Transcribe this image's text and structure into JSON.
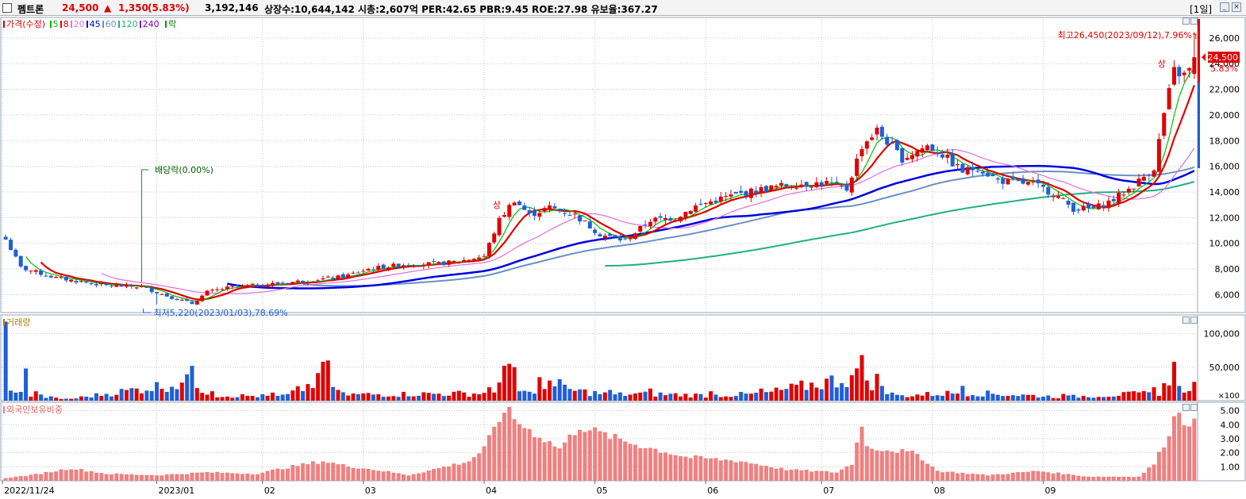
{
  "header": {
    "name": "펨트론",
    "price": "24,500",
    "change_arrow": "▲",
    "change": "1,350",
    "change_pct": "(5.83%)",
    "volume": "3,192,146",
    "info": "상장수:10,644,142 시총:2,607억 PER:42.65 PBR:9.45 ROE:27.98 유보율:367.27",
    "period": "[1일]"
  },
  "legend": {
    "price_label": "가격(수정)",
    "ma": [
      {
        "label": "5",
        "color": "#00c000"
      },
      {
        "label": "8",
        "color": "#e00000"
      },
      {
        "label": "20",
        "color": "#e070e0"
      },
      {
        "label": "45",
        "color": "#0000e0"
      },
      {
        "label": "60",
        "color": "#6a90c8"
      },
      {
        "label": "120",
        "color": "#20b080"
      },
      {
        "label": "240",
        "color": "#8000c0"
      }
    ],
    "rak": "락",
    "volume_label": "거래량",
    "foreign_label": "외국인보유비중"
  },
  "colors": {
    "up": "#e00000",
    "down": "#1f5fd6",
    "foreign": "#f08080",
    "grid": "#c8c8c8"
  },
  "annotations": {
    "high": "최고26,450(2023/09/12),7.96%",
    "low": "최저5,220(2023/01/03),78.69%",
    "dividend": "배당락(0.00%)",
    "limit_up": "상",
    "last_price": "24,500",
    "last_pct": "5.83%"
  },
  "chart_data": {
    "type": "candlestick",
    "x_range": [
      "2022/11/24",
      "2023/09/13"
    ],
    "x_ticks": [
      "2022/11/24",
      "2023/01",
      "02",
      "03",
      "04",
      "05",
      "06",
      "07",
      "08",
      "09"
    ],
    "price_axis": {
      "ticks": [
        "6,000",
        "8,000",
        "10,000",
        "12,000",
        "14,000",
        "16,000",
        "18,000",
        "20,000",
        "22,000",
        "24,000",
        "26,000"
      ],
      "ylim": [
        4600,
        27600
      ]
    },
    "volume_axis": {
      "ticks": [
        "50,000",
        "100,000"
      ],
      "unit": "×100",
      "ylim": [
        0,
        128000
      ]
    },
    "foreign_axis": {
      "ticks": [
        "1.00",
        "2.00",
        "3.00",
        "4.00",
        "5.00"
      ],
      "ylim": [
        0,
        5.6
      ]
    },
    "price_keypoints": [
      [
        0,
        10300
      ],
      [
        3,
        8100
      ],
      [
        10,
        7300
      ],
      [
        20,
        6700
      ],
      [
        27,
        6600
      ],
      [
        32,
        5900
      ],
      [
        37,
        5300
      ],
      [
        40,
        6200
      ],
      [
        45,
        6600
      ],
      [
        52,
        6800
      ],
      [
        60,
        7100
      ],
      [
        67,
        7400
      ],
      [
        72,
        8000
      ],
      [
        80,
        8400
      ],
      [
        86,
        8400
      ],
      [
        90,
        8600
      ],
      [
        95,
        9000
      ],
      [
        98,
        11800
      ],
      [
        101,
        13400
      ],
      [
        104,
        12200
      ],
      [
        108,
        12800
      ],
      [
        113,
        12200
      ],
      [
        118,
        10700
      ],
      [
        123,
        10200
      ],
      [
        128,
        11800
      ],
      [
        133,
        12000
      ],
      [
        137,
        12900
      ],
      [
        143,
        13600
      ],
      [
        150,
        14200
      ],
      [
        156,
        14600
      ],
      [
        163,
        14700
      ],
      [
        167,
        14200
      ],
      [
        170,
        17600
      ],
      [
        173,
        18800
      ],
      [
        178,
        16600
      ],
      [
        183,
        17600
      ],
      [
        186,
        16900
      ],
      [
        190,
        15600
      ],
      [
        193,
        15900
      ],
      [
        197,
        14900
      ],
      [
        204,
        14600
      ],
      [
        208,
        13900
      ],
      [
        212,
        12700
      ],
      [
        216,
        12700
      ],
      [
        220,
        13400
      ],
      [
        224,
        14500
      ],
      [
        228,
        15900
      ],
      [
        230,
        20100
      ],
      [
        232,
        23400
      ],
      [
        234,
        23100
      ],
      [
        235,
        23500
      ],
      [
        236,
        24500
      ]
    ],
    "volume_keypoints": [
      [
        0,
        118000
      ],
      [
        1,
        15000
      ],
      [
        2,
        12000
      ],
      [
        4,
        48000
      ],
      [
        5,
        6000
      ],
      [
        6,
        14000
      ],
      [
        12,
        3000
      ],
      [
        37,
        52000
      ],
      [
        41,
        14000
      ],
      [
        53,
        12000
      ],
      [
        55,
        9000
      ],
      [
        63,
        58000
      ],
      [
        64,
        60000
      ],
      [
        66,
        16000
      ],
      [
        96,
        20000
      ],
      [
        99,
        52000
      ],
      [
        100,
        55000
      ],
      [
        101,
        50000
      ],
      [
        102,
        14000
      ],
      [
        106,
        35000
      ],
      [
        108,
        30000
      ],
      [
        110,
        32000
      ],
      [
        120,
        16000
      ],
      [
        128,
        18000
      ],
      [
        140,
        14000
      ],
      [
        150,
        18000
      ],
      [
        170,
        68000
      ],
      [
        173,
        40000
      ],
      [
        176,
        12000
      ],
      [
        190,
        22000
      ],
      [
        210,
        10000
      ],
      [
        228,
        20000
      ],
      [
        230,
        26000
      ],
      [
        232,
        58000
      ],
      [
        233,
        22000
      ],
      [
        234,
        12000
      ],
      [
        236,
        28000
      ]
    ],
    "foreign_keypoints": [
      [
        0,
        0.2
      ],
      [
        5,
        0.4
      ],
      [
        13,
        0.9
      ],
      [
        20,
        0.5
      ],
      [
        30,
        0.4
      ],
      [
        40,
        0.6
      ],
      [
        50,
        0.5
      ],
      [
        55,
        0.9
      ],
      [
        63,
        1.4
      ],
      [
        67,
        1.1
      ],
      [
        75,
        0.7
      ],
      [
        80,
        0.4
      ],
      [
        92,
        1.4
      ],
      [
        95,
        2.3
      ],
      [
        98,
        4.3
      ],
      [
        99,
        5.2
      ],
      [
        101,
        4.4
      ],
      [
        104,
        3.6
      ],
      [
        110,
        2.3
      ],
      [
        114,
        3.9
      ],
      [
        118,
        3.4
      ],
      [
        124,
        2.7
      ],
      [
        135,
        1.7
      ],
      [
        146,
        1.4
      ],
      [
        155,
        0.8
      ],
      [
        165,
        0.6
      ],
      [
        168,
        1.2
      ],
      [
        170,
        4.2
      ],
      [
        171,
        2.4
      ],
      [
        176,
        2.2
      ],
      [
        181,
        1.9
      ],
      [
        185,
        0.7
      ],
      [
        195,
        0.4
      ],
      [
        205,
        0.7
      ],
      [
        215,
        0.3
      ],
      [
        225,
        0.3
      ],
      [
        228,
        1.2
      ],
      [
        230,
        2.6
      ],
      [
        232,
        4.4
      ],
      [
        233,
        5.1
      ],
      [
        234,
        4.3
      ],
      [
        236,
        4.2
      ]
    ]
  }
}
